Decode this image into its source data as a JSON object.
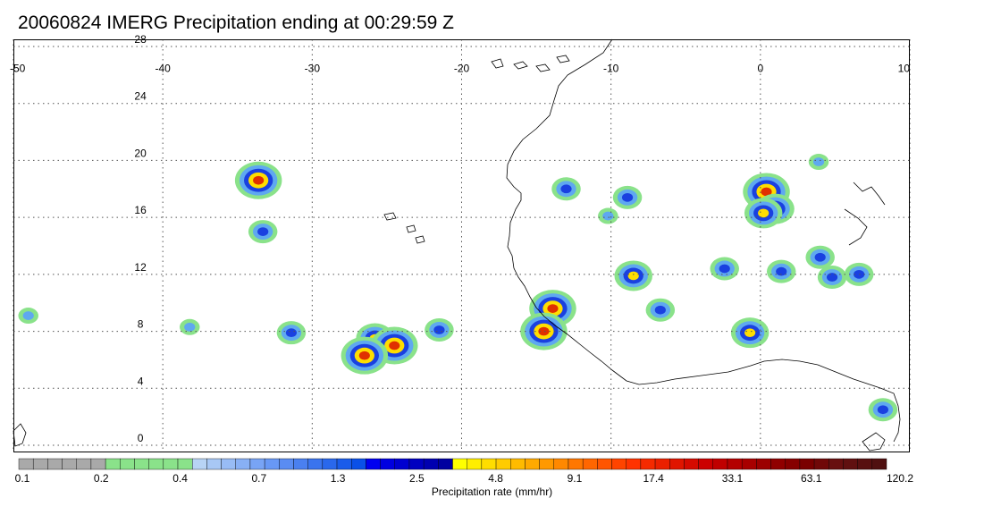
{
  "title": "20060824 IMERG Precipitation ending at 00:29:59 Z",
  "map": {
    "lon_range": [
      -50,
      10
    ],
    "lat_range": [
      -0.5,
      28.5
    ],
    "lon_ticks": [
      -50,
      -40,
      -30,
      -20,
      -10,
      0,
      10
    ],
    "lat_ticks": [
      0,
      4,
      8,
      12,
      16,
      20,
      24,
      28
    ],
    "lon_tick_labels": [
      "-50",
      "-40",
      "-30",
      "-20",
      "-10",
      "0",
      "10"
    ],
    "lat_tick_labels": [
      "0",
      "4",
      "8",
      "12",
      "16",
      "20",
      "24",
      "28"
    ],
    "gridlines": "dotted",
    "land_fill": "none",
    "coastline_color": "#000000"
  },
  "storms": [
    {
      "lon": -33.6,
      "lat": 18.6,
      "intensity": 4
    },
    {
      "lon": -33.3,
      "lat": 15.0,
      "intensity": 2
    },
    {
      "lon": -25.8,
      "lat": 7.5,
      "intensity": 3
    },
    {
      "lon": -24.5,
      "lat": 7.0,
      "intensity": 4
    },
    {
      "lon": -26.5,
      "lat": 6.3,
      "intensity": 4
    },
    {
      "lon": -21.5,
      "lat": 8.1,
      "intensity": 2
    },
    {
      "lon": -31.4,
      "lat": 7.9,
      "intensity": 2
    },
    {
      "lon": -13.9,
      "lat": 9.6,
      "intensity": 4
    },
    {
      "lon": -14.5,
      "lat": 8.0,
      "intensity": 4
    },
    {
      "lon": -13.0,
      "lat": 18.0,
      "intensity": 2
    },
    {
      "lon": -8.9,
      "lat": 17.4,
      "intensity": 2
    },
    {
      "lon": -8.5,
      "lat": 11.9,
      "intensity": 3
    },
    {
      "lon": -6.7,
      "lat": 9.5,
      "intensity": 2
    },
    {
      "lon": -2.4,
      "lat": 12.4,
      "intensity": 2
    },
    {
      "lon": -0.7,
      "lat": 7.9,
      "intensity": 3
    },
    {
      "lon": 0.4,
      "lat": 17.8,
      "intensity": 4
    },
    {
      "lon": 1.0,
      "lat": 16.6,
      "intensity": 3
    },
    {
      "lon": 0.2,
      "lat": 16.3,
      "intensity": 3
    },
    {
      "lon": 4.0,
      "lat": 13.2,
      "intensity": 2
    },
    {
      "lon": 4.8,
      "lat": 11.8,
      "intensity": 2
    },
    {
      "lon": 6.6,
      "lat": 12.0,
      "intensity": 2
    },
    {
      "lon": 1.4,
      "lat": 12.2,
      "intensity": 2
    },
    {
      "lon": -10.2,
      "lat": 16.1,
      "intensity": 1
    },
    {
      "lon": 3.9,
      "lat": 19.9,
      "intensity": 1
    },
    {
      "lon": 8.2,
      "lat": 2.5,
      "intensity": 2
    },
    {
      "lon": -49.0,
      "lat": 9.1,
      "intensity": 1
    },
    {
      "lon": -38.2,
      "lat": 8.3,
      "intensity": 1
    }
  ],
  "colorbar": {
    "colors": [
      "#a9a9a9",
      "#a9a9a9",
      "#a9a9a9",
      "#a9a9a9",
      "#a9a9a9",
      "#a9a9a9",
      "#8ae28a",
      "#8ae28a",
      "#8ae28a",
      "#8ae28a",
      "#8ae28a",
      "#8ae28a",
      "#b8d4f5",
      "#a8c8f5",
      "#98bcf5",
      "#88b0f5",
      "#78a4f5",
      "#6898f5",
      "#5a8cf2",
      "#4a80f0",
      "#3a74ee",
      "#2a68ec",
      "#1a5cea",
      "#0a50e8",
      "#0000f0",
      "#0000e0",
      "#0000d0",
      "#0000c0",
      "#0000b0",
      "#0000a0",
      "#ffff00",
      "#ffee00",
      "#ffdd00",
      "#ffcc00",
      "#ffbb00",
      "#ffaa00",
      "#ff9900",
      "#ff8800",
      "#ff7700",
      "#ff6600",
      "#ff5500",
      "#ff4400",
      "#ff3300",
      "#f52a00",
      "#eb2000",
      "#e01500",
      "#d50a00",
      "#cc0000",
      "#c00000",
      "#b40000",
      "#a80000",
      "#9c0000",
      "#900000",
      "#860000",
      "#7a0000",
      "#700808",
      "#681010",
      "#601010",
      "#581010",
      "#501010"
    ],
    "tick_labels": [
      "0.1",
      "0.2",
      "0.4",
      "0.7",
      "1.3",
      "2.5",
      "4.8",
      "9.1",
      "17.4",
      "33.1",
      "63.1",
      "120.2"
    ],
    "label": "Precipitation rate (mm/hr)"
  }
}
